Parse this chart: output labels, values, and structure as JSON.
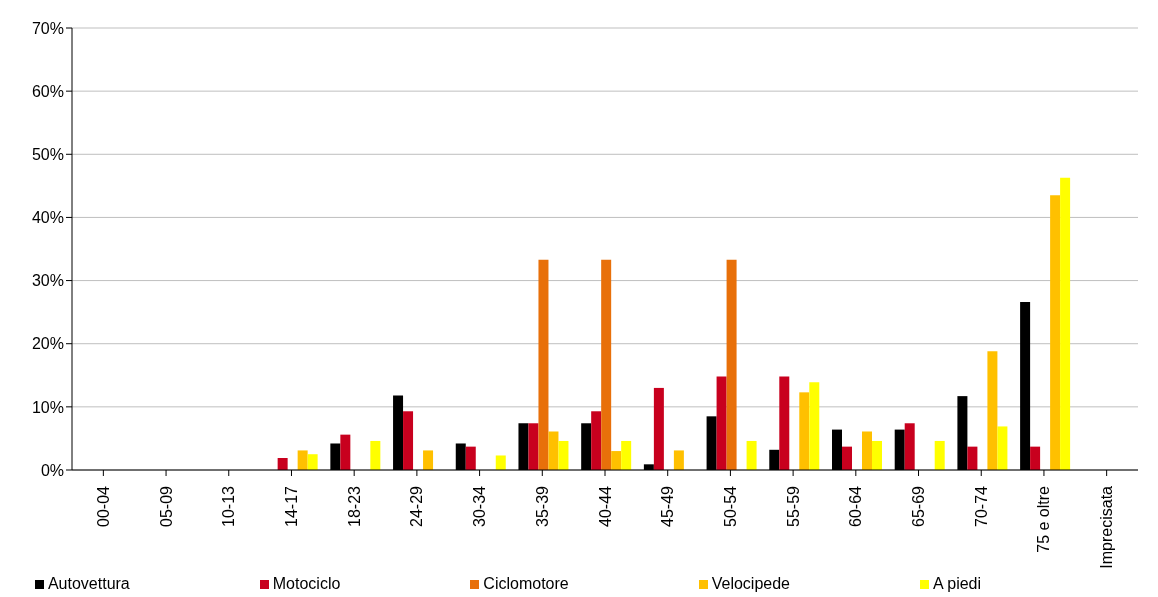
{
  "chart_data": {
    "type": "bar",
    "categories": [
      "00-04",
      "05-09",
      "10-13",
      "14-17",
      "18-23",
      "24-29",
      "30-34",
      "35-39",
      "40-44",
      "45-49",
      "50-54",
      "55-59",
      "60-64",
      "65-69",
      "70-74",
      "75 e oltre",
      "Imprecisata"
    ],
    "series": [
      {
        "name": "Autovettura",
        "color": "#000000",
        "values": [
          null,
          null,
          null,
          null,
          4.2,
          11.8,
          4.2,
          7.4,
          7.4,
          0.9,
          8.5,
          3.2,
          6.4,
          6.4,
          11.7,
          26.6,
          null
        ]
      },
      {
        "name": "Motociclo",
        "color": "#c8001e",
        "values": [
          null,
          null,
          null,
          1.9,
          5.6,
          9.3,
          3.7,
          7.4,
          9.3,
          13.0,
          14.8,
          14.8,
          3.7,
          7.4,
          3.7,
          3.7,
          null
        ]
      },
      {
        "name": "Ciclomotore",
        "color": "#e8700a",
        "values": [
          null,
          null,
          null,
          null,
          null,
          null,
          null,
          33.3,
          33.3,
          null,
          33.3,
          null,
          null,
          null,
          null,
          null,
          null
        ]
      },
      {
        "name": "Velocipede",
        "color": "#ffc000",
        "values": [
          null,
          null,
          null,
          3.1,
          null,
          3.1,
          null,
          6.1,
          3.0,
          3.1,
          null,
          12.3,
          6.1,
          null,
          18.8,
          43.5,
          null
        ]
      },
      {
        "name": "A piedi",
        "color": "#ffff00",
        "values": [
          null,
          null,
          null,
          2.5,
          4.6,
          null,
          2.3,
          4.6,
          4.6,
          null,
          4.6,
          13.9,
          4.6,
          4.6,
          6.9,
          46.3,
          null
        ]
      }
    ],
    "ylim": [
      0,
      70
    ],
    "yticks": [
      {
        "value": 0,
        "label": "0%"
      },
      {
        "value": 10,
        "label": "10%"
      },
      {
        "value": 20,
        "label": "20%"
      },
      {
        "value": 30,
        "label": "30%"
      },
      {
        "value": 40,
        "label": "40%"
      },
      {
        "value": 50,
        "label": "50%"
      },
      {
        "value": 60,
        "label": "60%"
      },
      {
        "value": 70,
        "label": "70%"
      }
    ],
    "grid": "y",
    "legend": "bottom"
  }
}
